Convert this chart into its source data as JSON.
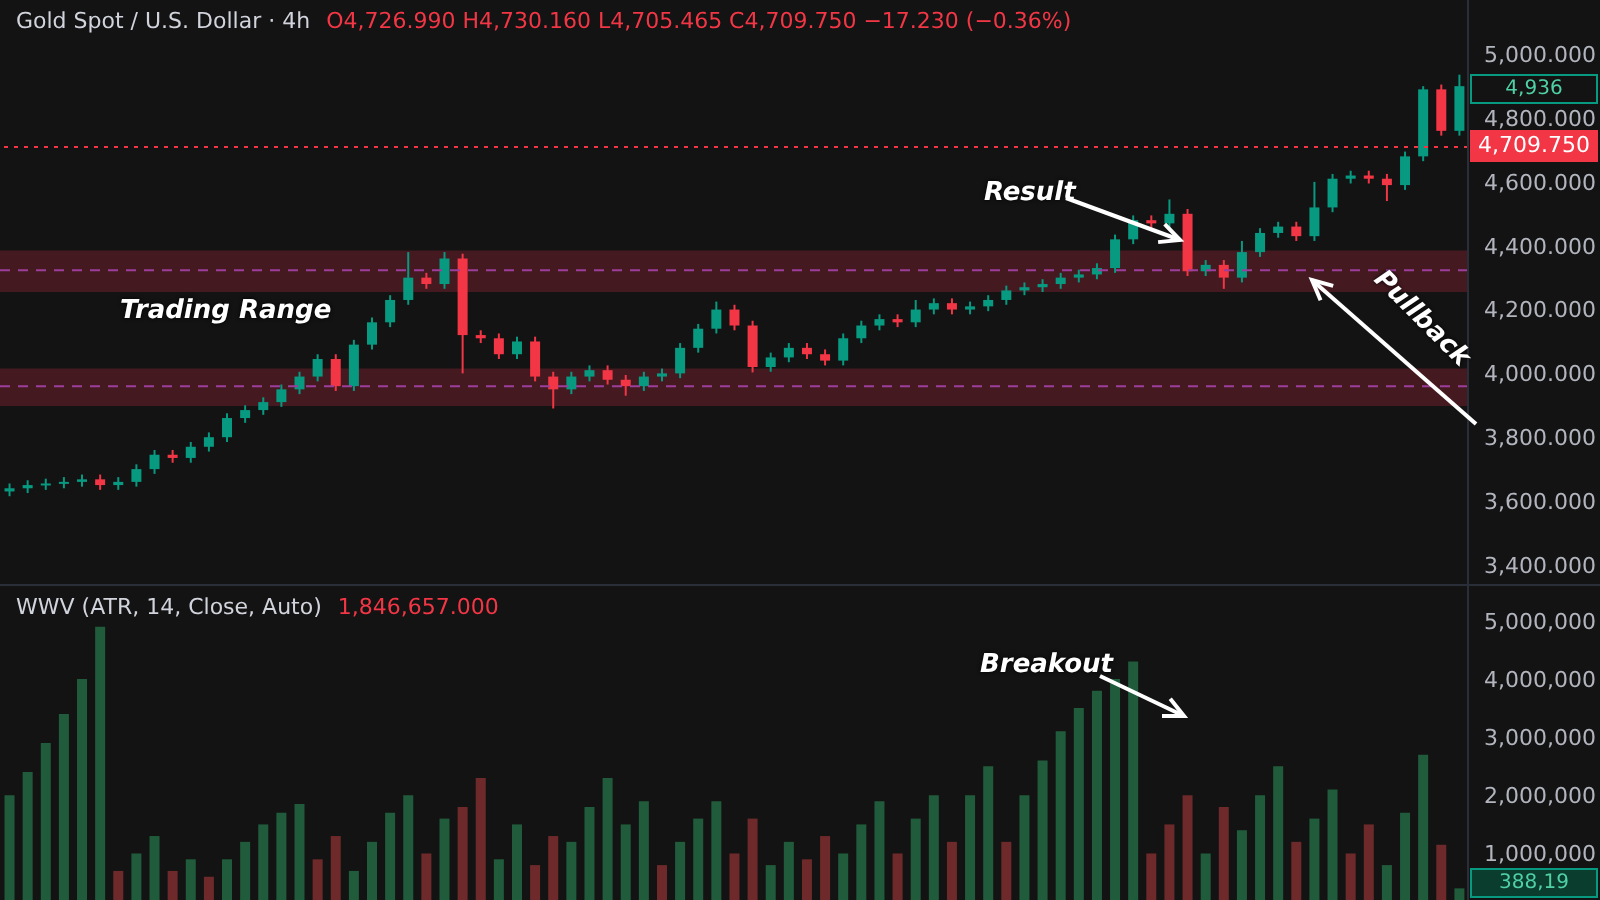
{
  "chart_data": [
    {
      "type": "candlestick",
      "title": "Gold Spot / U.S. Dollar · 4h",
      "subtitle": "O4,726.990 H4,730.160 L4,705.465 C4,709.750 −17.230 (−0.36%)",
      "categories": [
        null,
        null,
        null,
        null,
        null,
        null,
        null,
        null,
        null,
        null,
        null,
        null,
        null,
        null,
        null,
        null,
        null,
        null,
        null,
        null,
        null,
        null,
        null,
        null,
        null,
        null,
        null,
        null,
        null,
        null,
        null,
        null,
        null,
        null,
        null,
        null,
        null,
        null,
        null,
        null,
        null,
        null,
        null,
        null,
        null,
        null,
        null,
        null,
        null,
        null,
        null,
        null,
        null,
        null,
        null,
        null,
        null,
        null,
        null,
        null,
        null,
        null,
        null,
        null,
        null,
        null,
        null,
        null,
        null,
        null,
        null,
        null,
        null,
        null,
        null,
        null,
        null,
        null,
        null,
        null,
        null
      ],
      "ohlc": [
        [
          3630,
          3655,
          3615,
          3640
        ],
        [
          3640,
          3665,
          3625,
          3650
        ],
        [
          3650,
          3670,
          3635,
          3655
        ],
        [
          3655,
          3675,
          3640,
          3660
        ],
        [
          3660,
          3683,
          3645,
          3668
        ],
        [
          3668,
          3683,
          3635,
          3650
        ],
        [
          3650,
          3675,
          3635,
          3660
        ],
        [
          3660,
          3715,
          3645,
          3700
        ],
        [
          3700,
          3760,
          3685,
          3745
        ],
        [
          3745,
          3760,
          3720,
          3735
        ],
        [
          3735,
          3785,
          3720,
          3770
        ],
        [
          3770,
          3815,
          3755,
          3800
        ],
        [
          3800,
          3875,
          3785,
          3860
        ],
        [
          3860,
          3900,
          3845,
          3885
        ],
        [
          3885,
          3925,
          3870,
          3910
        ],
        [
          3910,
          3965,
          3895,
          3950
        ],
        [
          3950,
          4005,
          3935,
          3990
        ],
        [
          3990,
          4060,
          3975,
          4045
        ],
        [
          4045,
          4060,
          3945,
          3960
        ],
        [
          3960,
          4105,
          3945,
          4090
        ],
        [
          4090,
          4175,
          4075,
          4160
        ],
        [
          4160,
          4245,
          4145,
          4230
        ],
        [
          4230,
          4380,
          4215,
          4300
        ],
        [
          4300,
          4315,
          4265,
          4280
        ],
        [
          4280,
          4380,
          4265,
          4360
        ],
        [
          4360,
          4375,
          4000,
          4120
        ],
        [
          4120,
          4135,
          4095,
          4110
        ],
        [
          4110,
          4125,
          4045,
          4060
        ],
        [
          4060,
          4115,
          4045,
          4100
        ],
        [
          4100,
          4115,
          3975,
          3990
        ],
        [
          3990,
          4005,
          3890,
          3950
        ],
        [
          3950,
          4005,
          3935,
          3990
        ],
        [
          3990,
          4025,
          3975,
          4010
        ],
        [
          4010,
          4025,
          3965,
          3980
        ],
        [
          3980,
          3995,
          3930,
          3960
        ],
        [
          3960,
          4005,
          3945,
          3990
        ],
        [
          3990,
          4015,
          3975,
          4000
        ],
        [
          4000,
          4095,
          3985,
          4080
        ],
        [
          4080,
          4155,
          4065,
          4140
        ],
        [
          4140,
          4225,
          4125,
          4200
        ],
        [
          4200,
          4215,
          4135,
          4150
        ],
        [
          4150,
          4165,
          4003,
          4020
        ],
        [
          4020,
          4065,
          4005,
          4050
        ],
        [
          4050,
          4095,
          4035,
          4080
        ],
        [
          4080,
          4095,
          4045,
          4060
        ],
        [
          4060,
          4075,
          4025,
          4040
        ],
        [
          4040,
          4125,
          4025,
          4110
        ],
        [
          4110,
          4165,
          4095,
          4150
        ],
        [
          4150,
          4185,
          4135,
          4170
        ],
        [
          4170,
          4185,
          4145,
          4160
        ],
        [
          4160,
          4230,
          4145,
          4200
        ],
        [
          4200,
          4235,
          4185,
          4220
        ],
        [
          4220,
          4235,
          4185,
          4200
        ],
        [
          4200,
          4225,
          4185,
          4210
        ],
        [
          4210,
          4245,
          4195,
          4230
        ],
        [
          4230,
          4275,
          4215,
          4260
        ],
        [
          4260,
          4285,
          4245,
          4270
        ],
        [
          4270,
          4295,
          4255,
          4280
        ],
        [
          4280,
          4315,
          4265,
          4300
        ],
        [
          4300,
          4325,
          4285,
          4310
        ],
        [
          4310,
          4345,
          4295,
          4330
        ],
        [
          4330,
          4435,
          4315,
          4420
        ],
        [
          4420,
          4495,
          4405,
          4480
        ],
        [
          4480,
          4495,
          4455,
          4470
        ],
        [
          4470,
          4545,
          4455,
          4500
        ],
        [
          4500,
          4515,
          4305,
          4320
        ],
        [
          4320,
          4355,
          4305,
          4340
        ],
        [
          4340,
          4355,
          4265,
          4300
        ],
        [
          4300,
          4415,
          4285,
          4380
        ],
        [
          4380,
          4455,
          4365,
          4440
        ],
        [
          4440,
          4475,
          4425,
          4460
        ],
        [
          4460,
          4475,
          4415,
          4430
        ],
        [
          4430,
          4600,
          4415,
          4520
        ],
        [
          4520,
          4625,
          4505,
          4610
        ],
        [
          4610,
          4635,
          4595,
          4620
        ],
        [
          4620,
          4635,
          4595,
          4610
        ],
        [
          4610,
          4625,
          4540,
          4590
        ],
        [
          4590,
          4695,
          4575,
          4680
        ],
        [
          4680,
          4900,
          4665,
          4890
        ],
        [
          4890,
          4905,
          4745,
          4760
        ],
        [
          4760,
          4936,
          4745,
          4900
        ]
      ],
      "ylim": [
        3340,
        5170
      ],
      "yticks": [
        {
          "value": 3400,
          "label": "3,400.000"
        },
        {
          "value": 3600,
          "label": "3,600.000"
        },
        {
          "value": 3800,
          "label": "3,800.000"
        },
        {
          "value": 4000,
          "label": "4,000.000"
        },
        {
          "value": 4200,
          "label": "4,200.000"
        },
        {
          "value": 4400,
          "label": "4,400.000"
        },
        {
          "value": 4600,
          "label": "4,600.000"
        },
        {
          "value": 4800,
          "label": "4,800.000"
        },
        {
          "value": 5000,
          "label": "5,000.000"
        }
      ],
      "bands": [
        {
          "axis": "y",
          "from": 4255,
          "to": 4385,
          "color": "#4a1c22"
        },
        {
          "axis": "y",
          "from": 3898,
          "to": 4015,
          "color": "#4a1c22"
        }
      ],
      "ref_lines": [
        {
          "axis": "y",
          "value": 4323,
          "color": "#9c3f9c",
          "line_style": "dashed"
        },
        {
          "axis": "y",
          "value": 3960,
          "color": "#9c3f9c",
          "line_style": "dashed"
        },
        {
          "axis": "y",
          "value": 4709.75,
          "label": "4,709.750",
          "color": "#f23645",
          "line_style": "dotted"
        }
      ],
      "annotations": [
        "Trading Range",
        "Result",
        "Pullback",
        "4,936"
      ]
    },
    {
      "type": "bar",
      "title": "WWV (ATR, 14, Close, Auto)",
      "subtitle": "1,846,657.000",
      "categories": [
        null,
        null,
        null,
        null,
        null,
        null,
        null,
        null,
        null,
        null,
        null,
        null,
        null,
        null,
        null,
        null,
        null,
        null,
        null,
        null,
        null,
        null,
        null,
        null,
        null,
        null,
        null,
        null,
        null,
        null,
        null,
        null,
        null,
        null,
        null,
        null,
        null,
        null,
        null,
        null,
        null,
        null,
        null,
        null,
        null,
        null,
        null,
        null,
        null,
        null,
        null,
        null,
        null,
        null,
        null,
        null,
        null,
        null,
        null,
        null,
        null,
        null,
        null,
        null,
        null,
        null,
        null,
        null,
        null,
        null,
        null,
        null,
        null,
        null,
        null,
        null,
        null,
        null,
        null,
        null,
        null
      ],
      "values": [
        2000000,
        2400000,
        2900000,
        3400000,
        4000000,
        4900000,
        700000,
        1000000,
        1300000,
        700000,
        900000,
        600000,
        900000,
        1200000,
        1500000,
        1700000,
        1850000,
        900000,
        1300000,
        700000,
        1200000,
        1700000,
        2000000,
        1000000,
        1600000,
        1800000,
        2300000,
        900000,
        1500000,
        800000,
        1300000,
        1200000,
        1800000,
        2300000,
        1500000,
        1900000,
        800000,
        1200000,
        1600000,
        1900000,
        1000000,
        1600000,
        800000,
        1200000,
        900000,
        1300000,
        1000000,
        1500000,
        1900000,
        1000000,
        1600000,
        2000000,
        1200000,
        2000000,
        2500000,
        1200000,
        2000000,
        2600000,
        3100000,
        3500000,
        3800000,
        4000000,
        4300000,
        1000000,
        1500000,
        2000000,
        1000000,
        1800000,
        1400000,
        2000000,
        2500000,
        1200000,
        1600000,
        2100000,
        1000000,
        1500000,
        800000,
        1700000,
        2700000,
        1150000,
        400000
      ],
      "colors": [
        "#205c3b",
        "#205c3b",
        "#205c3b",
        "#205c3b",
        "#205c3b",
        "#205c3b",
        "#6e2a2a",
        "#205c3b",
        "#205c3b",
        "#6e2a2a",
        "#205c3b",
        "#6e2a2a",
        "#205c3b",
        "#205c3b",
        "#205c3b",
        "#205c3b",
        "#205c3b",
        "#6e2a2a",
        "#6e2a2a",
        "#205c3b",
        "#205c3b",
        "#205c3b",
        "#205c3b",
        "#6e2a2a",
        "#205c3b",
        "#6e2a2a",
        "#6e2a2a",
        "#205c3b",
        "#205c3b",
        "#6e2a2a",
        "#6e2a2a",
        "#205c3b",
        "#205c3b",
        "#205c3b",
        "#205c3b",
        "#205c3b",
        "#6e2a2a",
        "#205c3b",
        "#205c3b",
        "#205c3b",
        "#6e2a2a",
        "#6e2a2a",
        "#205c3b",
        "#205c3b",
        "#6e2a2a",
        "#6e2a2a",
        "#205c3b",
        "#205c3b",
        "#205c3b",
        "#6e2a2a",
        "#205c3b",
        "#205c3b",
        "#6e2a2a",
        "#205c3b",
        "#205c3b",
        "#6e2a2a",
        "#205c3b",
        "#205c3b",
        "#205c3b",
        "#205c3b",
        "#205c3b",
        "#205c3b",
        "#205c3b",
        "#6e2a2a",
        "#6e2a2a",
        "#6e2a2a",
        "#205c3b",
        "#6e2a2a",
        "#205c3b",
        "#205c3b",
        "#205c3b",
        "#6e2a2a",
        "#205c3b",
        "#205c3b",
        "#6e2a2a",
        "#6e2a2a",
        "#205c3b",
        "#205c3b",
        "#205c3b",
        "#6e2a2a",
        "#205c3b"
      ],
      "ylim": [
        200000,
        5600000
      ],
      "yticks": [
        {
          "value": 1000000,
          "label": "1,000,000"
        },
        {
          "value": 2000000,
          "label": "2,000,000"
        },
        {
          "value": 3000000,
          "label": "3,000,000"
        },
        {
          "value": 4000000,
          "label": "4,000,000"
        },
        {
          "value": 5000000,
          "label": "5,000,000"
        }
      ],
      "annotations": [
        "Breakout",
        "388,19"
      ]
    }
  ]
}
